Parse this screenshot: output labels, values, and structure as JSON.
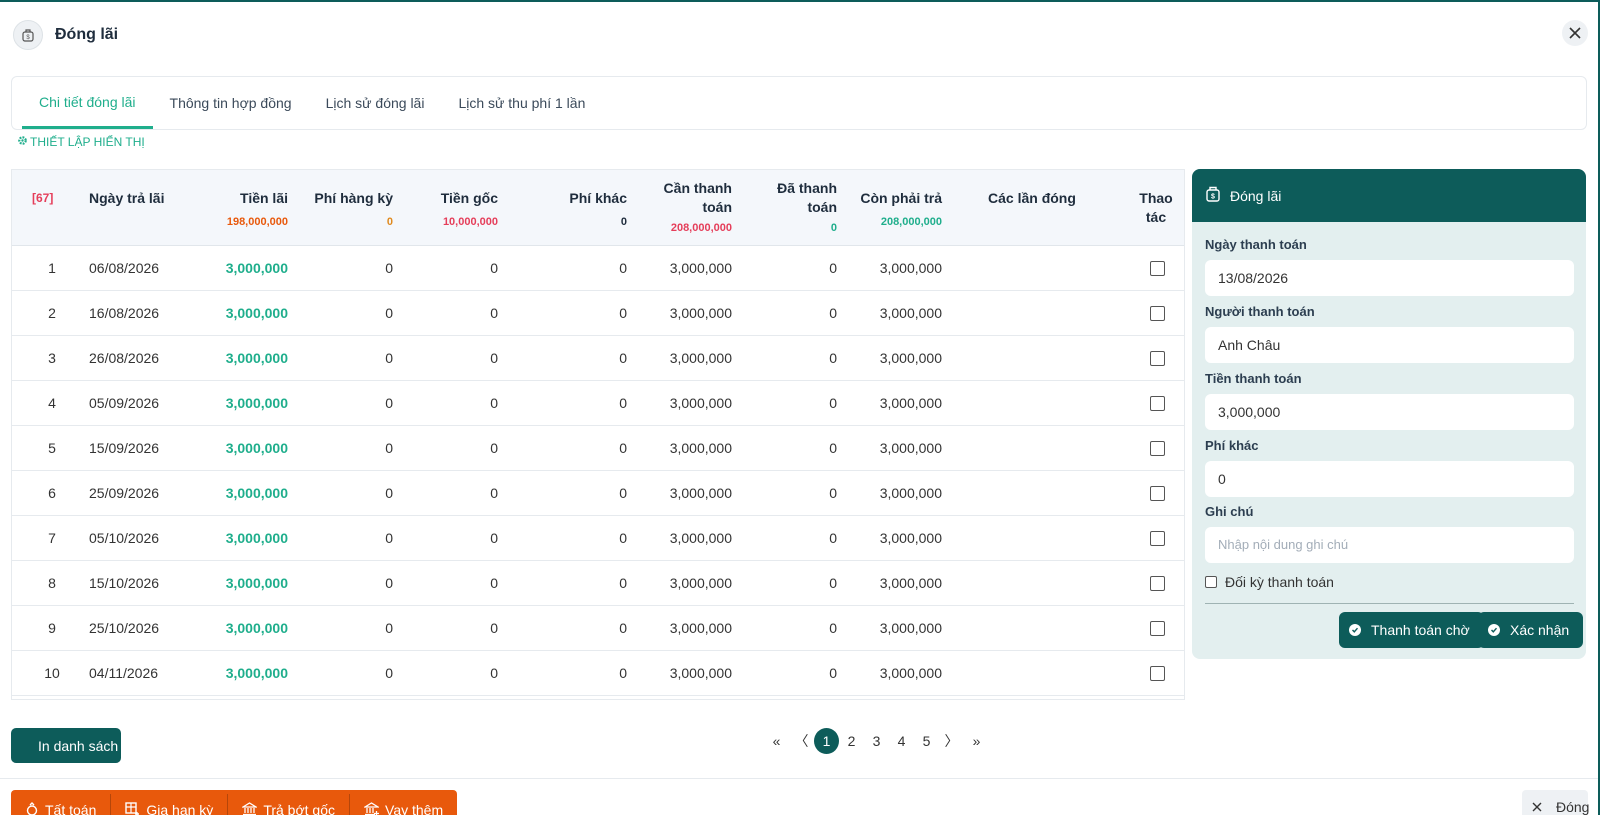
{
  "dialog": {
    "title": "Đóng lãi"
  },
  "tabs": [
    "Chi tiết đóng lãi",
    "Thông tin hợp đồng",
    "Lịch sử đóng lãi",
    "Lịch sử thu phí 1 lần"
  ],
  "settings_label": "THIẾT LẬP HIỂN THỊ",
  "table": {
    "count_badge": "[67]",
    "columns": {
      "date": "Ngày trả lãi",
      "interest": "Tiền lãi",
      "period_fee": "Phí hàng kỳ",
      "principal": "Tiền gốc",
      "other_fee": "Phí khác",
      "to_pay_1": "Cần thanh",
      "to_pay_2": "toán",
      "paid_1": "Đã thanh",
      "paid_2": "toán",
      "remaining": "Còn phải trả",
      "payments": "Các lần đóng",
      "action_1": "Thao",
      "action_2": "tác"
    },
    "totals": {
      "interest": "198,000,000",
      "period_fee": "0",
      "principal": "10,000,000",
      "other_fee": "0",
      "to_pay": "208,000,000",
      "paid": "0",
      "remaining": "208,000,000"
    },
    "rows": [
      {
        "no": "1",
        "date": "06/08/2026",
        "interest": "3,000,000",
        "period_fee": "0",
        "principal": "0",
        "other_fee": "0",
        "to_pay": "3,000,000",
        "paid": "0",
        "remaining": "3,000,000"
      },
      {
        "no": "2",
        "date": "16/08/2026",
        "interest": "3,000,000",
        "period_fee": "0",
        "principal": "0",
        "other_fee": "0",
        "to_pay": "3,000,000",
        "paid": "0",
        "remaining": "3,000,000"
      },
      {
        "no": "3",
        "date": "26/08/2026",
        "interest": "3,000,000",
        "period_fee": "0",
        "principal": "0",
        "other_fee": "0",
        "to_pay": "3,000,000",
        "paid": "0",
        "remaining": "3,000,000"
      },
      {
        "no": "4",
        "date": "05/09/2026",
        "interest": "3,000,000",
        "period_fee": "0",
        "principal": "0",
        "other_fee": "0",
        "to_pay": "3,000,000",
        "paid": "0",
        "remaining": "3,000,000"
      },
      {
        "no": "5",
        "date": "15/09/2026",
        "interest": "3,000,000",
        "period_fee": "0",
        "principal": "0",
        "other_fee": "0",
        "to_pay": "3,000,000",
        "paid": "0",
        "remaining": "3,000,000"
      },
      {
        "no": "6",
        "date": "25/09/2026",
        "interest": "3,000,000",
        "period_fee": "0",
        "principal": "0",
        "other_fee": "0",
        "to_pay": "3,000,000",
        "paid": "0",
        "remaining": "3,000,000"
      },
      {
        "no": "7",
        "date": "05/10/2026",
        "interest": "3,000,000",
        "period_fee": "0",
        "principal": "0",
        "other_fee": "0",
        "to_pay": "3,000,000",
        "paid": "0",
        "remaining": "3,000,000"
      },
      {
        "no": "8",
        "date": "15/10/2026",
        "interest": "3,000,000",
        "period_fee": "0",
        "principal": "0",
        "other_fee": "0",
        "to_pay": "3,000,000",
        "paid": "0",
        "remaining": "3,000,000"
      },
      {
        "no": "9",
        "date": "25/10/2026",
        "interest": "3,000,000",
        "period_fee": "0",
        "principal": "0",
        "other_fee": "0",
        "to_pay": "3,000,000",
        "paid": "0",
        "remaining": "3,000,000"
      },
      {
        "no": "10",
        "date": "04/11/2026",
        "interest": "3,000,000",
        "period_fee": "0",
        "principal": "0",
        "other_fee": "0",
        "to_pay": "3,000,000",
        "paid": "0",
        "remaining": "3,000,000"
      }
    ]
  },
  "panel": {
    "title": "Đóng lãi",
    "payment_date_label": "Ngày thanh toán",
    "payment_date_value": "13/08/2026",
    "payer_label": "Người thanh toán",
    "payer_value": "Anh Châu",
    "amount_label": "Tiền thanh toán",
    "amount_value": "3,000,000",
    "other_fee_label": "Phí khác",
    "other_fee_value": "0",
    "note_label": "Ghi chú",
    "note_placeholder": "Nhập nội dung ghi chú",
    "reconcile_label": "Đối kỳ thanh toán",
    "pending_button": "Thanh toán chờ",
    "confirm_button": "Xác nhận"
  },
  "print_button": "In danh sách",
  "pagination": {
    "first": "«",
    "prev": "〈",
    "pages": [
      "1",
      "2",
      "3",
      "4",
      "5"
    ],
    "next": "〉",
    "last": "»",
    "current": "1"
  },
  "footer_actions": [
    "Tất toán",
    "Gia hạn kỳ",
    "Trả bớt gốc",
    "Vay thêm"
  ],
  "close_button": "Đóng",
  "colors": {
    "primary": "#0d5c5a",
    "accent_green": "#1fae8c",
    "orange": "#e8590c",
    "red_badge": "#e53e5a",
    "amber": "#e08a1e"
  }
}
